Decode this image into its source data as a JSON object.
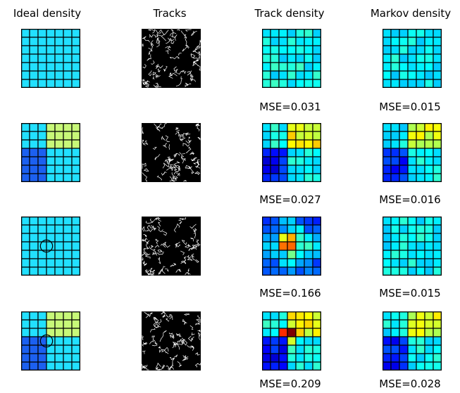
{
  "headers": {
    "ideal": "Ideal density",
    "tracks": "Tracks",
    "track_density": "Track density",
    "markov_density": "Markov density"
  },
  "palette": {
    "cyan": "#22e0ff",
    "blue": "#1c60f0",
    "greenyellow": "#c8f878",
    "grid_line": "#000000",
    "track_bg": "#000000",
    "track_fg": "#ffffff"
  },
  "rows": [
    {
      "ideal": {
        "layout": "uniform",
        "circle": false
      },
      "track": {
        "layout": "uniform_variation",
        "mse": "MSE=0.031"
      },
      "markov": {
        "layout": "uniform_variation",
        "mse": "MSE=0.015"
      }
    },
    {
      "ideal": {
        "layout": "quadrant",
        "circle": false
      },
      "track": {
        "layout": "quadrant",
        "mse": "MSE=0.027"
      },
      "markov": {
        "layout": "quadrant",
        "mse": "MSE=0.016"
      }
    },
    {
      "ideal": {
        "layout": "uniform",
        "circle": true
      },
      "track": {
        "layout": "center_hotspot",
        "mse": "MSE=0.166"
      },
      "markov": {
        "layout": "uniform",
        "mse": "MSE=0.015"
      }
    },
    {
      "ideal": {
        "layout": "quadrant",
        "circle": true
      },
      "track": {
        "layout": "quadrant_hotspot",
        "mse": "MSE=0.209"
      },
      "markov": {
        "layout": "quadrant",
        "mse": "MSE=0.028"
      }
    }
  ]
}
